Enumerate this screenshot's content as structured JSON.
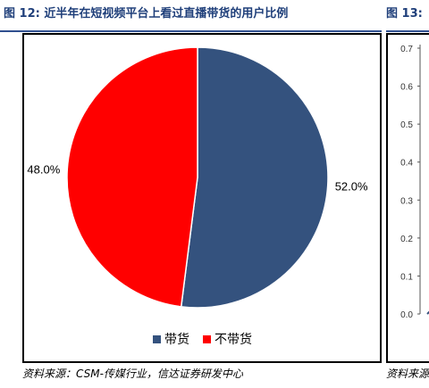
{
  "left_figure": {
    "title": "图 12: 近半年在短视频平台上看过直播带货的用户比例",
    "source": "资料来源：CSM-传媒行业，信达证券研发中心"
  },
  "right_figure": {
    "title": "图 13: ",
    "source": "资料来源"
  },
  "chart_data": [
    {
      "type": "pie",
      "title": "",
      "labels": [
        "带货",
        "不带货"
      ],
      "values": [
        52.0,
        48.0
      ],
      "value_labels": [
        "52.0%",
        "48.0%"
      ],
      "colors": [
        "#34527e",
        "#ff0000"
      ],
      "start": "12 o'clock, clockwise",
      "legend": "bottom"
    },
    {
      "type": "line",
      "title": "",
      "y_ticks": [
        "0.0",
        "0.1",
        "0.2",
        "0.3",
        "0.4",
        "0.5",
        "0.6",
        "0.7"
      ],
      "ylim": [
        0,
        0.7
      ],
      "note": "cropped at right edge"
    }
  ]
}
